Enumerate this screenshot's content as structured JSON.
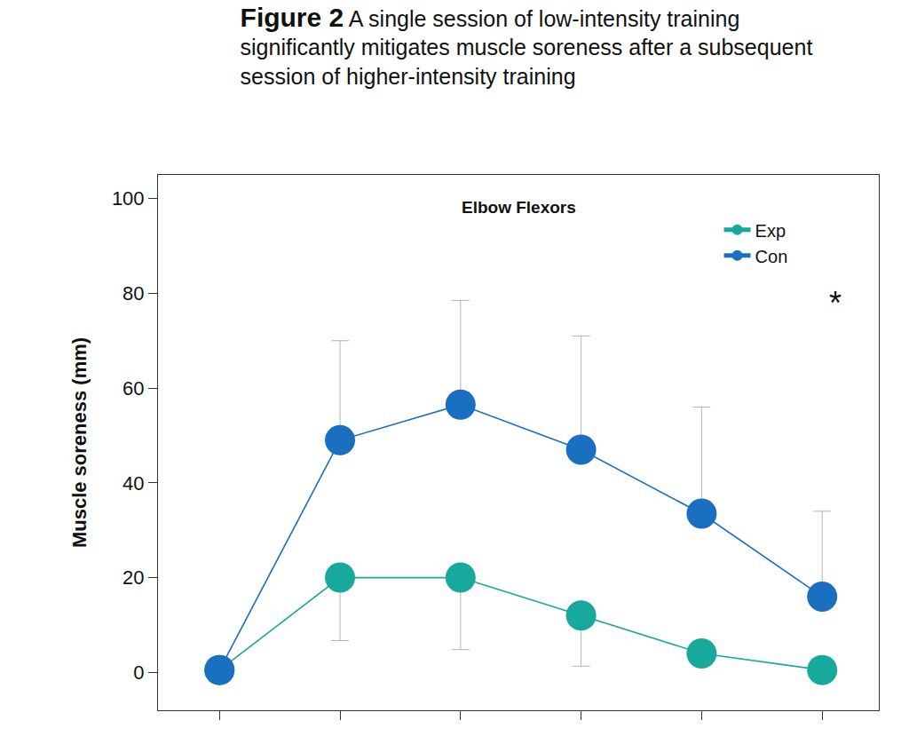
{
  "chart_data": {
    "type": "line",
    "title": "Figure 2",
    "subtitle": "A single session of low-intensity training significantly mitigates muscle soreness after a subsequent session of higher-intensity training",
    "y_label": "Muscle soreness (mm)",
    "annotations": [
      "Elbow Flexors",
      "*"
    ],
    "categories": [
      null,
      null,
      null,
      null,
      null,
      null
    ],
    "series": [
      {
        "name": "Exp",
        "color": "#17a99b",
        "marker": "circle",
        "line_style": "solid",
        "values": [
          0.5,
          20,
          20,
          12,
          4,
          0.5
        ],
        "error_minus": [
          null,
          13.3,
          15.2,
          10.7,
          null,
          null
        ]
      },
      {
        "name": "Con",
        "color": "#1a6fc0",
        "marker": "circle",
        "line_style": "solid",
        "values": [
          0.5,
          49,
          56.5,
          47,
          33.5,
          16
        ],
        "error_plus": [
          null,
          21,
          22,
          24,
          22.5,
          18
        ]
      }
    ],
    "ylim": [
      -8,
      105
    ],
    "yticks": [
      0,
      20,
      40,
      60,
      80,
      100
    ],
    "grid": false,
    "legend": "upper right",
    "tick_labels": "y"
  }
}
